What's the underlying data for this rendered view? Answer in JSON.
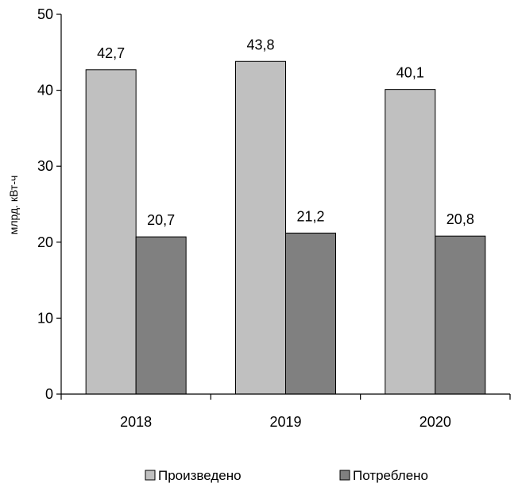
{
  "chart_data": {
    "type": "bar",
    "title": "",
    "xlabel": "",
    "ylabel": "млрд. кВт-ч",
    "categories": [
      "2018",
      "2019",
      "2020"
    ],
    "ylim": [
      0,
      50
    ],
    "yticks": [
      0,
      10,
      20,
      30,
      40,
      50
    ],
    "grid": false,
    "legend_position": "bottom",
    "series": [
      {
        "name": "Произведено",
        "color": "#c0c0c0",
        "values": [
          42.7,
          43.8,
          40.1
        ],
        "labels": [
          "42,7",
          "43,8",
          "40,1"
        ]
      },
      {
        "name": "Потреблено",
        "color": "#808080",
        "values": [
          20.7,
          21.2,
          20.8
        ],
        "labels": [
          "20,7",
          "21,2",
          "20,8"
        ]
      }
    ]
  }
}
